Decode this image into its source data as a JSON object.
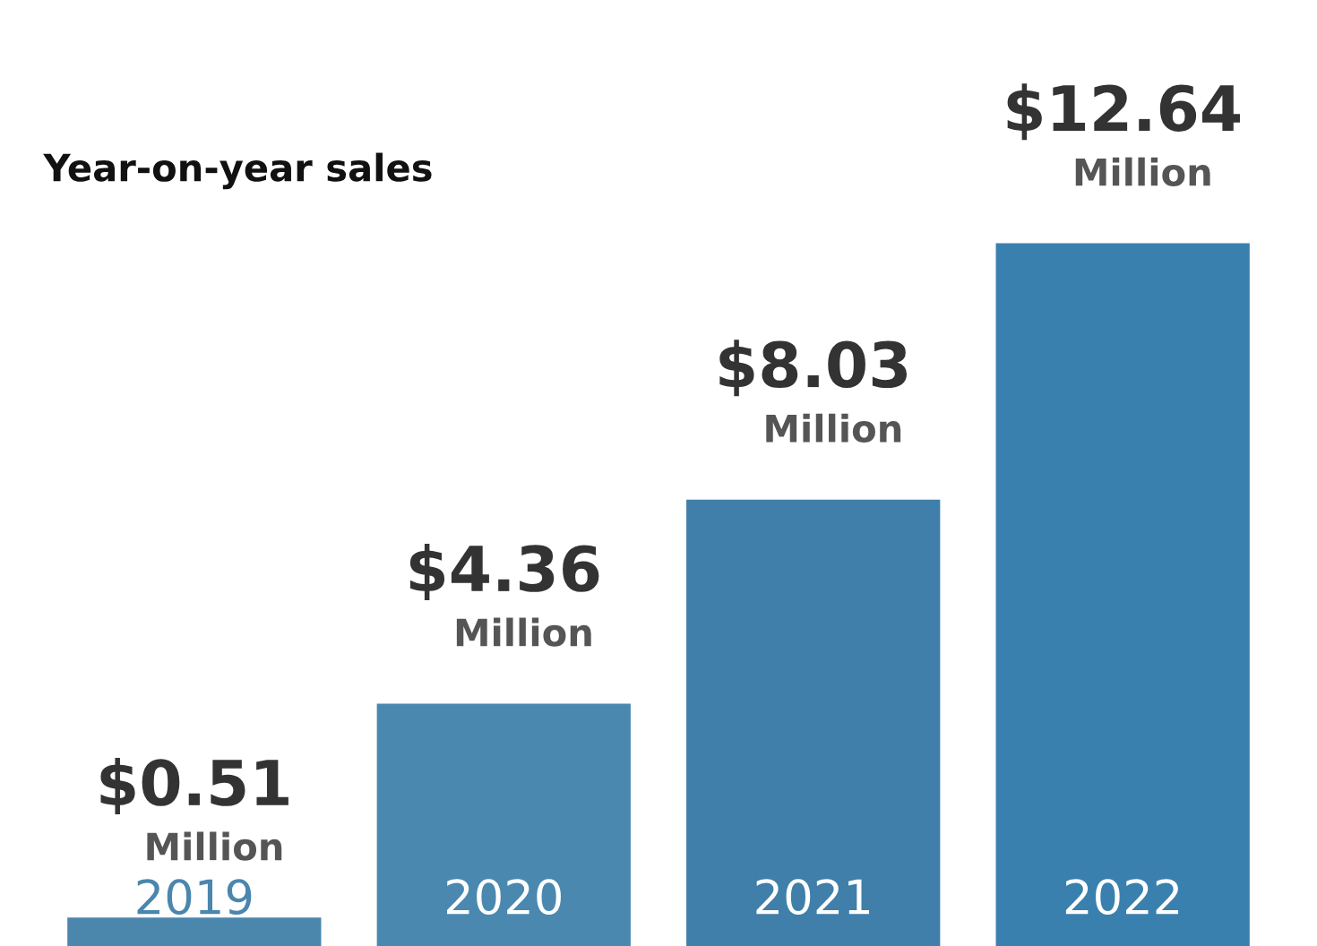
{
  "chart_data": {
    "type": "bar",
    "title": "Year-on-year sales",
    "categories": [
      "2019",
      "2020",
      "2021",
      "2022"
    ],
    "values": [
      0.51,
      4.36,
      8.03,
      12.64
    ],
    "colors": [
      "#4b86ad",
      "#4a88b0",
      "#3f7fa9",
      "#3a80ae"
    ],
    "value_labels": [
      "$0.51\nMillion",
      "$4.36\nMillion",
      "$8.03\nMillion",
      "$12.64\nMillion"
    ]
  }
}
